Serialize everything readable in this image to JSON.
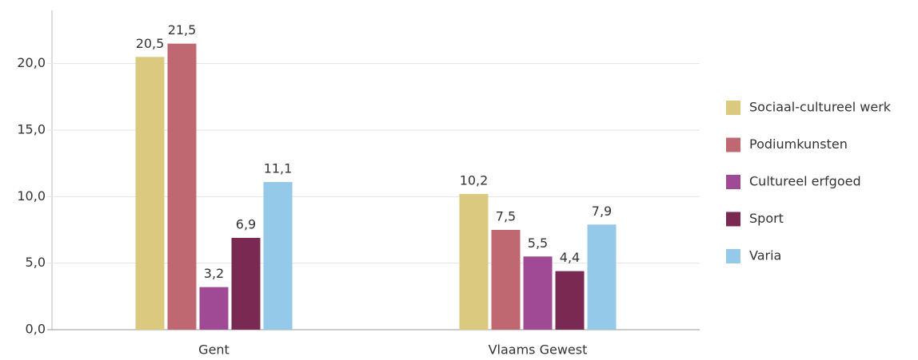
{
  "chart_data": {
    "type": "bar",
    "categories": [
      "Gent",
      "Vlaams Gewest"
    ],
    "series": [
      {
        "name": "Sociaal-cultureel werk",
        "color": "#dac97e",
        "values": [
          20.5,
          10.2
        ],
        "value_labels": [
          "20,5",
          "10,2"
        ]
      },
      {
        "name": "Podiumkunsten",
        "color": "#c06872",
        "values": [
          21.5,
          7.5
        ],
        "value_labels": [
          "21,5",
          "7,5"
        ]
      },
      {
        "name": "Cultureel erfgoed",
        "color": "#a04a96",
        "values": [
          3.2,
          5.5
        ],
        "value_labels": [
          "3,2",
          "5,5"
        ]
      },
      {
        "name": "Sport",
        "color": "#7a2a52",
        "values": [
          6.9,
          4.4
        ],
        "value_labels": [
          "6,9",
          "4,4"
        ]
      },
      {
        "name": "Varia",
        "color": "#94c9e9",
        "values": [
          11.1,
          7.9
        ],
        "value_labels": [
          "11,1",
          "7,9"
        ]
      }
    ],
    "ylim": [
      0,
      24
    ],
    "yticks": [
      {
        "value": 0,
        "label": "0,0"
      },
      {
        "value": 5,
        "label": "5,0"
      },
      {
        "value": 10,
        "label": "10,0"
      },
      {
        "value": 15,
        "label": "15,0"
      },
      {
        "value": 20,
        "label": "20,0"
      }
    ],
    "grid": true,
    "legend": "right"
  }
}
